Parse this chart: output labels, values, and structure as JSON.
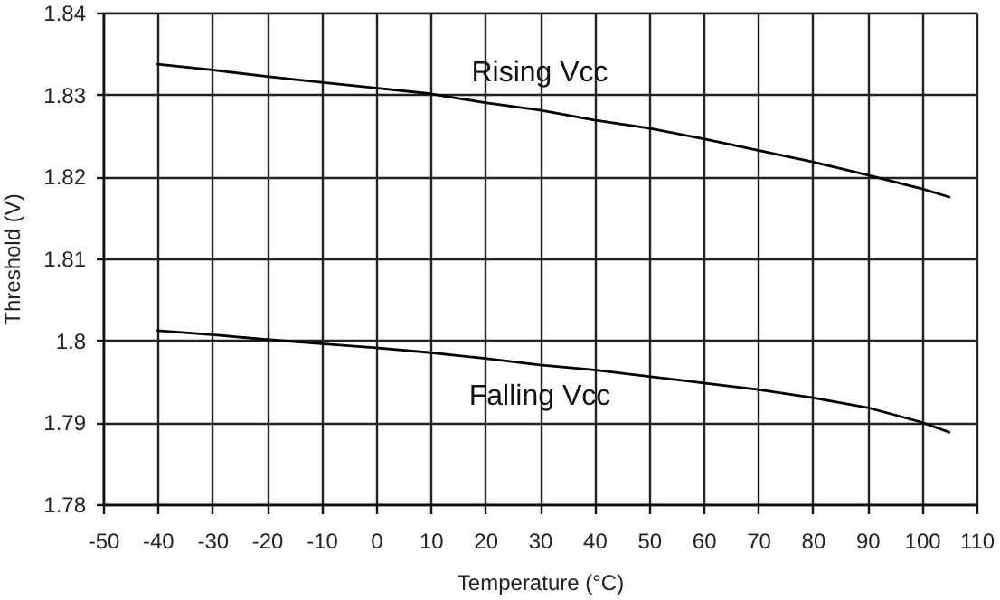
{
  "chart_data": {
    "type": "line",
    "xlabel": "Temperature (°C)",
    "ylabel": "Threshold (V)",
    "x": [
      -40,
      -30,
      -20,
      -10,
      0,
      10,
      20,
      30,
      40,
      50,
      60,
      70,
      80,
      90,
      100,
      105
    ],
    "series": [
      {
        "name": "Rising Vcc",
        "color": "#000000",
        "values": [
          1.8337,
          1.833,
          1.8322,
          1.8315,
          1.8308,
          1.8301,
          1.829,
          1.8281,
          1.8269,
          1.8259,
          1.8246,
          1.8232,
          1.8218,
          1.8202,
          1.8185,
          1.8175
        ]
      },
      {
        "name": "Falling Vcc",
        "color": "#000000",
        "values": [
          1.8012,
          1.8007,
          1.8001,
          1.7996,
          1.7991,
          1.7985,
          1.7978,
          1.797,
          1.7964,
          1.7956,
          1.7948,
          1.794,
          1.793,
          1.7918,
          1.79,
          1.7888
        ]
      }
    ],
    "xlim": [
      -50,
      110
    ],
    "xticks": [
      -50,
      -40,
      -30,
      -20,
      -10,
      0,
      10,
      20,
      30,
      40,
      50,
      60,
      70,
      80,
      90,
      100,
      110
    ],
    "ylim": [
      1.78,
      1.84
    ],
    "yticks": [
      1.78,
      1.79,
      1.8,
      1.81,
      1.82,
      1.83,
      1.84
    ],
    "grid": true,
    "legend": false,
    "marker": "none",
    "line_style": "solid"
  }
}
